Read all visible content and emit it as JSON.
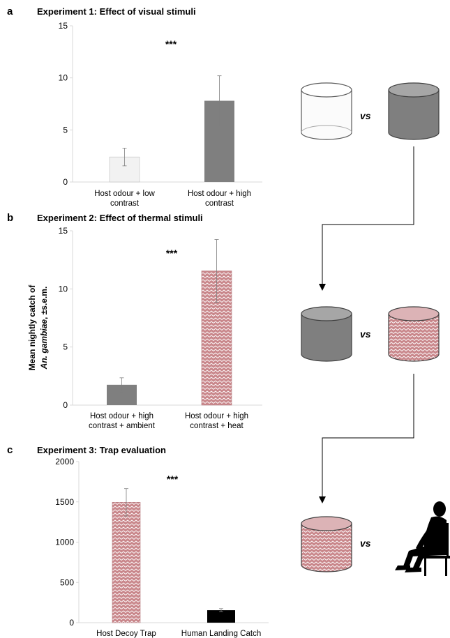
{
  "colors": {
    "low_contrast": "#f2f2f2",
    "high_contrast": "#7f7f7f",
    "heat_fill": "#c9878b",
    "heat_zigzag": "#ffffff",
    "black": "#000000",
    "axis": "#d9d9d9",
    "error": "#7f7f7f"
  },
  "y_axis_label": {
    "line1": "Mean nightly catch of",
    "line2_italic": "An. gambiae",
    "line2_rest": ", ±s.e.m."
  },
  "vs_label": "vs",
  "chart_data": [
    {
      "type": "bar",
      "panel_label": "a",
      "title": "Experiment 1: Effect of visual stimuli",
      "categories": [
        [
          "Host odour + low",
          "contrast"
        ],
        [
          "Host odour + high",
          "contrast"
        ]
      ],
      "values": [
        2.4,
        7.8
      ],
      "errors": [
        0.85,
        2.4
      ],
      "ylim": [
        0,
        15
      ],
      "yticks": [
        0,
        5,
        10,
        15
      ],
      "significance": "***",
      "fills": [
        "low",
        "high"
      ],
      "grid": false
    },
    {
      "type": "bar",
      "panel_label": "b",
      "title": "Experiment 2: Effect of thermal stimuli",
      "categories": [
        [
          "Host odour + high",
          "contrast + ambient"
        ],
        [
          "Host odour + high",
          "contrast + heat"
        ]
      ],
      "values": [
        1.75,
        11.55
      ],
      "errors": [
        0.6,
        2.7
      ],
      "ylim": [
        0,
        15
      ],
      "yticks": [
        0,
        5,
        10,
        15
      ],
      "significance": "***",
      "fills": [
        "high",
        "heat"
      ],
      "grid": false
    },
    {
      "type": "bar",
      "panel_label": "c",
      "title": "Experiment 3: Trap evaluation",
      "categories": [
        [
          "Host Decoy Trap"
        ],
        [
          "Human Landing Catch"
        ]
      ],
      "values": [
        1495,
        155
      ],
      "errors": [
        170,
        20
      ],
      "ylim": [
        0,
        2000
      ],
      "yticks": [
        0,
        500,
        1000,
        1500,
        2000
      ],
      "significance": "***",
      "fills": [
        "heat",
        "black"
      ],
      "grid": false
    }
  ],
  "diagram": {
    "row_a": [
      "transparent-cylinder",
      "grey-cylinder"
    ],
    "row_b": [
      "grey-cylinder",
      "heated-cylinder"
    ],
    "row_c": [
      "heated-cylinder",
      "seated-human-silhouette"
    ]
  }
}
